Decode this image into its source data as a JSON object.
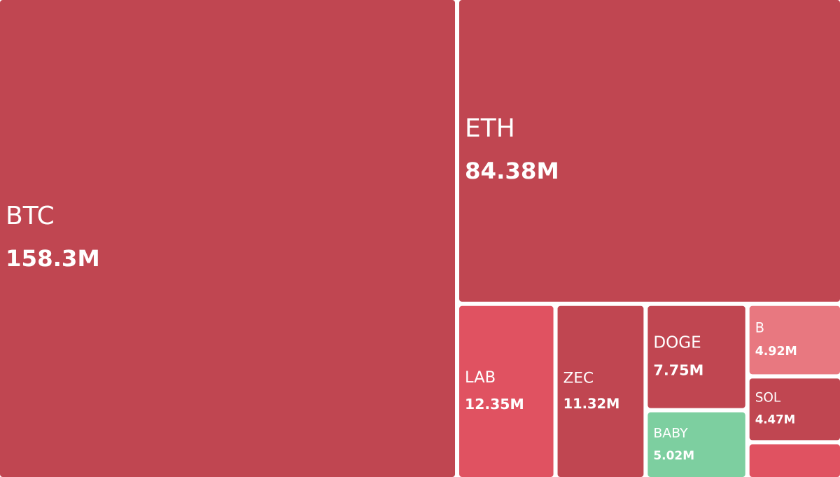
{
  "chart_data": {
    "type": "treemap",
    "categories": [
      "BTC",
      "ETH",
      "LAB",
      "ZEC",
      "DOGE",
      "BABY",
      "B",
      "SOL",
      null
    ],
    "values": [
      158.3,
      84.38,
      12.35,
      11.32,
      7.75,
      5.02,
      4.92,
      4.47,
      2.5
    ],
    "value_labels": [
      "158.3M",
      "84.38M",
      "12.35M",
      "11.32M",
      "7.75M",
      "5.02M",
      "4.92M",
      "4.47M",
      null
    ],
    "colors": [
      "#c04651",
      "#c04651",
      "#e05261",
      "#c04651",
      "#c04651",
      "#7dcfa0",
      "#e87880",
      "#c04651",
      "#e05261"
    ]
  }
}
